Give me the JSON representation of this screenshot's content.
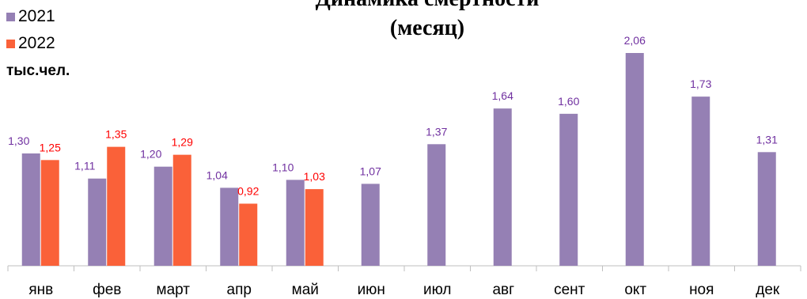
{
  "chart_data": {
    "type": "bar",
    "title": [
      "Динамика смертности",
      "(месяц)"
    ],
    "unit_label": "тыс.чел.",
    "categories": [
      "янв",
      "фев",
      "март",
      "апр",
      "май",
      "июн",
      "июл",
      "авг",
      "сент",
      "окт",
      "ноя",
      "дек"
    ],
    "series": [
      {
        "name": "2021",
        "color": "#9580b4",
        "label_color": "#7030a0",
        "values": [
          1.3,
          1.11,
          1.2,
          1.04,
          1.1,
          1.07,
          1.37,
          1.64,
          1.6,
          2.06,
          1.73,
          1.31
        ],
        "labels": [
          "1,30",
          "1,11",
          "1,20",
          "1,04",
          "1,10",
          "1,07",
          "1,37",
          "1,64",
          "1,60",
          "2,06",
          "1,73",
          "1,31"
        ]
      },
      {
        "name": "2022",
        "color": "#fa6139",
        "label_color": "#ff0000",
        "values": [
          1.25,
          1.35,
          1.29,
          0.92,
          1.03,
          null,
          null,
          null,
          null,
          null,
          null,
          null
        ],
        "labels": [
          "1,25",
          "1,35",
          "1,29",
          "0,92",
          "1,03",
          null,
          null,
          null,
          null,
          null,
          null,
          null
        ]
      }
    ],
    "ylim": [
      0.45,
      2.06
    ],
    "grid": false,
    "legend_position": "top-left"
  }
}
